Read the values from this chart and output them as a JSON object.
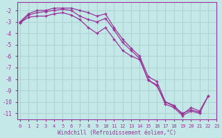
{
  "xlabel": "Windchill (Refroidissement éolien,°C)",
  "background_color": "#c4e8e8",
  "grid_color": "#aed4d4",
  "line_color": "#993399",
  "xlim": [
    -0.3,
    23.0
  ],
  "ylim": [
    -11.5,
    -1.3
  ],
  "yticks": [
    -11,
    -10,
    -9,
    -8,
    -7,
    -6,
    -5,
    -4,
    -3,
    -2
  ],
  "xticks": [
    0,
    1,
    2,
    3,
    4,
    5,
    6,
    7,
    8,
    9,
    10,
    11,
    12,
    13,
    14,
    15,
    16,
    17,
    18,
    19,
    20,
    21,
    22,
    23
  ],
  "series1_x": [
    0,
    1,
    2,
    3,
    4,
    5,
    6,
    7,
    8,
    9,
    10,
    11,
    12,
    13,
    14,
    15,
    16,
    17,
    18,
    19,
    20,
    21,
    22
  ],
  "series1_y": [
    -3.0,
    -2.3,
    -2.0,
    -2.0,
    -1.8,
    -1.8,
    -1.8,
    -2.0,
    -2.2,
    -2.5,
    -2.3,
    -3.5,
    -4.5,
    -5.3,
    -6.0,
    -7.8,
    -8.2,
    -10.0,
    -10.3,
    -11.1,
    -10.5,
    -10.8,
    -9.5
  ],
  "series2_x": [
    0,
    1,
    2,
    3,
    4,
    5,
    6,
    7,
    8,
    9,
    10,
    11,
    12,
    13,
    14,
    15,
    16,
    17,
    18,
    19,
    20,
    21,
    22,
    23
  ],
  "series2_y": [
    -3.1,
    -2.4,
    -2.2,
    -2.1,
    -2.0,
    -1.9,
    -2.0,
    -2.5,
    -2.8,
    -3.0,
    -2.7,
    -3.7,
    -4.8,
    -5.5,
    -6.2,
    -8.1,
    -8.5,
    -10.2,
    -10.5,
    -11.2,
    -10.8,
    -11.0,
    -9.5,
    null
  ],
  "series3_x": [
    0,
    1,
    2,
    3,
    4,
    5,
    6,
    7,
    8,
    9,
    10,
    11,
    12,
    13,
    14,
    15,
    16,
    17,
    18,
    19,
    20,
    21,
    22,
    23
  ],
  "series3_y": [
    -3.1,
    -2.6,
    -2.5,
    -2.5,
    -2.3,
    -2.2,
    -2.4,
    -2.8,
    -3.5,
    -4.0,
    -3.5,
    -4.5,
    -5.5,
    -6.0,
    -6.3,
    -8.1,
    -8.6,
    -10.0,
    -10.4,
    -11.0,
    -10.7,
    -10.9,
    null,
    null
  ]
}
